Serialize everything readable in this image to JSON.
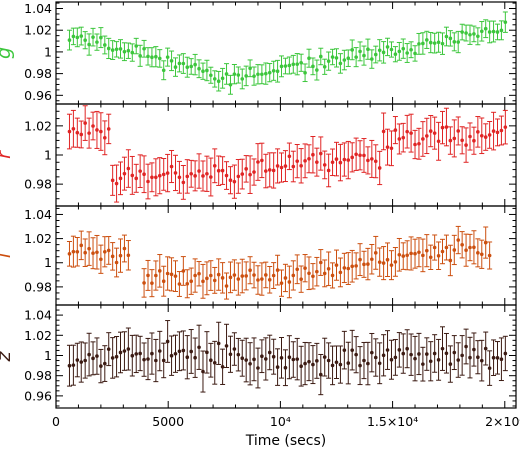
{
  "chart_data": [
    {
      "type": "scatter",
      "panel": "g",
      "band_label": "g",
      "color": "#3cc63c",
      "xlim": [
        0,
        20500
      ],
      "ylim": [
        0.952,
        1.046
      ],
      "ytick_labels": [
        "1.04",
        "1.02",
        "1",
        "0.98",
        "0.96"
      ],
      "ytick_values": [
        1.04,
        1.02,
        1.0,
        0.98,
        0.96
      ],
      "series": [
        {
          "x": [],
          "y": [],
          "err": []
        }
      ]
    },
    {
      "type": "scatter",
      "panel": "r",
      "band_label": "r",
      "color": "#e02424",
      "xlim": [
        0,
        20500
      ],
      "ylim": [
        0.965,
        1.035
      ],
      "ytick_labels": [
        "1.02",
        "1",
        "0.98"
      ],
      "ytick_values": [
        1.02,
        1.0,
        0.98
      ],
      "series": [
        {
          "x": [],
          "y": [],
          "err": []
        }
      ]
    },
    {
      "type": "scatter",
      "panel": "i",
      "band_label": "i",
      "color": "#cc4f0f",
      "xlim": [
        0,
        20500
      ],
      "ylim": [
        0.965,
        1.047
      ],
      "ytick_labels": [
        "1.04",
        "1.02",
        "1",
        "0.98"
      ],
      "ytick_values": [
        1.04,
        1.02,
        1.0,
        0.98
      ],
      "series": [
        {
          "x": [],
          "y": [],
          "err": []
        }
      ]
    },
    {
      "type": "scatter",
      "panel": "z",
      "band_label": "z",
      "color": "#3b1a12",
      "xlim": [
        0,
        20500
      ],
      "ylim": [
        0.948,
        1.05
      ],
      "ytick_labels": [
        "1.04",
        "1.02",
        "1",
        "0.98",
        "0.96"
      ],
      "ytick_values": [
        1.04,
        1.02,
        1.0,
        0.98,
        0.96
      ],
      "series": [
        {
          "x": [],
          "y": [],
          "err": []
        }
      ]
    }
  ],
  "x_axis": {
    "title": "Time (secs)",
    "tick_labels": [
      "0",
      "5000",
      "10⁴",
      "1.5×10⁴",
      "2×10⁴"
    ],
    "tick_values": [
      0,
      5000,
      10000,
      15000,
      20000
    ],
    "minor_step": 1000,
    "grid": false
  }
}
